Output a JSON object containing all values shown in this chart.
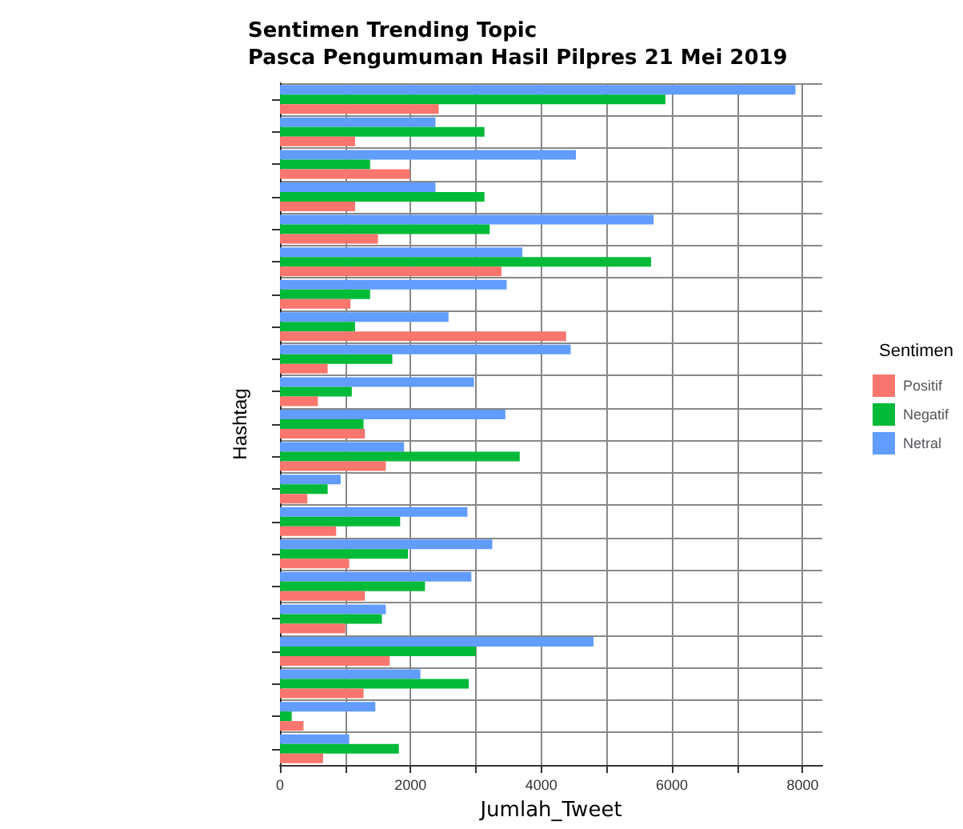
{
  "chart_data": {
    "type": "bar",
    "orientation": "horizontal",
    "title": "Sentimen Trending Topic\nPasca Pengumuman Hasil Pilpres 21 Mei 2019",
    "xlabel": "Jumlah_Tweet",
    "ylabel": "Hashtag",
    "legend_title": "Sentimen",
    "categories": [
      null,
      null,
      null,
      null,
      null,
      null,
      null,
      null,
      null,
      null,
      null,
      null,
      null,
      null,
      null,
      null,
      null,
      null,
      null,
      null,
      null
    ],
    "series": [
      {
        "name": "Positif",
        "color": "#f8766d",
        "values": [
          2430,
          1150,
          1990,
          1150,
          1500,
          3390,
          1080,
          4380,
          730,
          580,
          1300,
          1620,
          420,
          860,
          1060,
          1300,
          1000,
          1680,
          1280,
          360,
          660
        ]
      },
      {
        "name": "Negatif",
        "color": "#00ba38",
        "values": [
          5900,
          3130,
          1380,
          3130,
          3210,
          5680,
          1380,
          1150,
          1720,
          1100,
          1280,
          3670,
          730,
          1840,
          1960,
          2220,
          1560,
          3000,
          2890,
          180,
          1820
        ]
      },
      {
        "name": "Netral",
        "color": "#619cff",
        "values": [
          7890,
          2380,
          4530,
          2380,
          5720,
          3710,
          3470,
          2580,
          4450,
          2970,
          3450,
          1900,
          930,
          2870,
          3250,
          2930,
          1620,
          4800,
          2150,
          1460,
          1060
        ]
      }
    ],
    "xlim": [
      0,
      8300
    ],
    "xticks": [
      0,
      {
        "value": 1000,
        "label": null
      },
      2000,
      {
        "value": 3000,
        "label": null
      },
      4000,
      {
        "value": 5000,
        "label": null
      },
      6000,
      {
        "value": 7000,
        "label": null
      },
      8000
    ],
    "grid": true,
    "legend": "right"
  }
}
